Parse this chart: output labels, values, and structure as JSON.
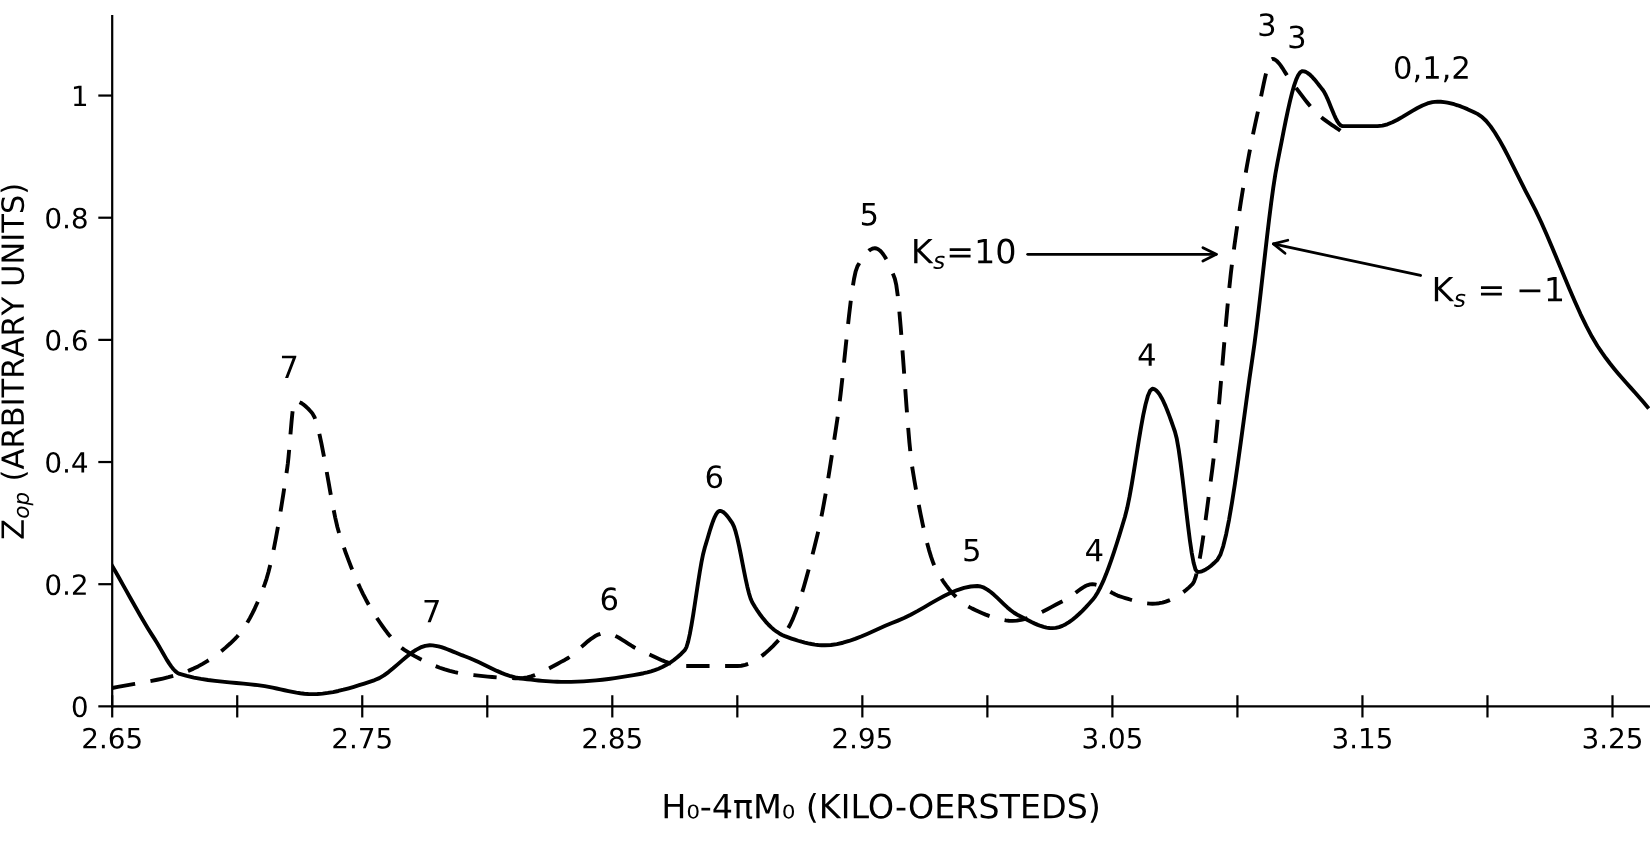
{
  "chart_data": {
    "type": "line",
    "xlabel": "H₀-4πM₀ (KILO-OERSTEDS)",
    "ylabel": "Z$_{op}$ (ARBITRARY UNITS)",
    "xlim": [
      2.65,
      3.265
    ],
    "ylim": [
      0,
      1.13
    ],
    "xticks": [
      2.65,
      {
        "value": 2.7,
        "label": null
      },
      2.75,
      {
        "value": 2.8,
        "label": null
      },
      2.85,
      {
        "value": 2.9,
        "label": null
      },
      2.95,
      {
        "value": 3.0,
        "label": null
      },
      3.05,
      {
        "value": 3.1,
        "label": null
      },
      3.15,
      {
        "value": 3.2,
        "label": null
      },
      3.25
    ],
    "yticks": [
      0,
      0.2,
      0.4,
      0.6,
      0.8,
      1
    ],
    "grid": false,
    "marker": "none",
    "series": [
      {
        "color": "#000000",
        "line_style": "solid",
        "x": [
          2.65,
          2.667,
          2.677,
          2.711,
          2.73,
          2.755,
          2.777,
          2.791,
          2.813,
          2.831,
          2.861,
          2.879,
          2.887,
          2.893,
          2.898,
          2.906,
          2.919,
          2.935,
          2.964,
          2.996,
          3.012,
          3.026,
          3.042,
          3.055,
          3.066,
          3.075,
          3.084,
          3.092,
          3.106,
          3.116,
          3.126,
          3.134,
          3.142,
          3.156,
          3.18,
          3.196,
          3.217,
          3.244,
          3.264
        ],
        "values": [
          0.23,
          0.11,
          0.053,
          0.033,
          0.02,
          0.043,
          0.1,
          0.082,
          0.046,
          0.04,
          0.053,
          0.092,
          0.26,
          0.32,
          0.3,
          0.17,
          0.115,
          0.1,
          0.14,
          0.197,
          0.15,
          0.128,
          0.174,
          0.31,
          0.52,
          0.45,
          0.22,
          0.24,
          0.57,
          0.89,
          1.04,
          1.01,
          0.95,
          0.95,
          0.99,
          0.97,
          0.83,
          0.59,
          0.49
        ]
      },
      {
        "color": "#000000",
        "line_style": "dashed",
        "x": [
          2.65,
          2.677,
          2.699,
          2.711,
          2.72,
          2.723,
          2.73,
          2.741,
          2.755,
          2.767,
          2.791,
          2.813,
          2.831,
          2.847,
          2.861,
          2.879,
          2.9,
          2.919,
          2.932,
          2.94,
          2.948,
          2.955,
          2.963,
          2.97,
          2.98,
          2.994,
          3.01,
          3.031,
          3.042,
          3.053,
          3.066,
          3.082,
          3.09,
          3.098,
          3.108,
          3.114,
          3.122,
          3.132,
          3.142
        ],
        "values": [
          0.03,
          0.053,
          0.11,
          0.2,
          0.39,
          0.5,
          0.48,
          0.28,
          0.15,
          0.092,
          0.053,
          0.046,
          0.076,
          0.12,
          0.092,
          0.066,
          0.066,
          0.12,
          0.28,
          0.47,
          0.72,
          0.75,
          0.7,
          0.39,
          0.22,
          0.16,
          0.14,
          0.174,
          0.2,
          0.18,
          0.168,
          0.2,
          0.39,
          0.73,
          0.97,
          1.06,
          1.02,
          0.97,
          0.94
        ]
      }
    ],
    "annotations": [
      {
        "text": "7",
        "x": 2.723,
        "y": 0.5
      },
      {
        "text": "7",
        "x": 2.78,
        "y": 0.1
      },
      {
        "text": "6",
        "x": 2.851,
        "y": 0.12
      },
      {
        "text": "6",
        "x": 2.893,
        "y": 0.32
      },
      {
        "text": "5",
        "x": 2.955,
        "y": 0.75
      },
      {
        "text": "5",
        "x": 2.996,
        "y": 0.2
      },
      {
        "text": "4",
        "x": 3.045,
        "y": 0.2
      },
      {
        "text": "4",
        "x": 3.066,
        "y": 0.52
      },
      {
        "text": "3",
        "x": 3.114,
        "y": 1.06
      },
      {
        "text": "3",
        "x": 3.126,
        "y": 1.04
      },
      {
        "text": "0,1,2",
        "x": 3.18,
        "y": 0.99
      },
      {
        "text": "K$_{s}$=10",
        "x": 3.095,
        "y": 0.74
      },
      {
        "text": "K$_{s}$ = −1",
        "x": 3.111,
        "y": 0.76
      }
    ]
  }
}
